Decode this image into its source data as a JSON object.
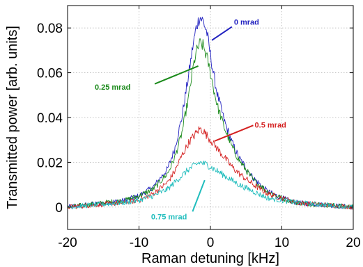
{
  "chart_data": {
    "type": "line",
    "xlabel": "Raman detuning [kHz]",
    "ylabel": "Transmitted power [arb. units]",
    "xlim": [
      -20,
      20
    ],
    "ylim": [
      -0.01,
      0.09
    ],
    "xticks": [
      -20,
      -10,
      0,
      10,
      20
    ],
    "xtick_labels": [
      "-20",
      "-10",
      "0",
      "10",
      "20"
    ],
    "yticks": [
      0,
      0.02,
      0.04,
      0.06,
      0.08
    ],
    "ytick_labels": [
      "0",
      "0.02",
      "0.04",
      "0.06",
      "0.08"
    ],
    "grid": true,
    "legend": "none",
    "series": [
      {
        "name": "0 mrad",
        "color": "#1f1fbf",
        "x": [
          -20,
          -16,
          -12,
          -10,
          -8,
          -6,
          -5,
          -4,
          -3,
          -2.5,
          -2,
          -1.5,
          -1,
          -0.5,
          0,
          0.5,
          1,
          2,
          3,
          4,
          6,
          8,
          10,
          12,
          16,
          20
        ],
        "y": [
          0.0,
          0.0015,
          0.003,
          0.005,
          0.009,
          0.017,
          0.026,
          0.04,
          0.06,
          0.071,
          0.08,
          0.085,
          0.083,
          0.078,
          0.068,
          0.058,
          0.05,
          0.038,
          0.029,
          0.022,
          0.013,
          0.007,
          0.004,
          0.002,
          0.001,
          0.0
        ]
      },
      {
        "name": "0.25 mrad",
        "color": "#1a8a1a",
        "x": [
          -20,
          -16,
          -12,
          -10,
          -8,
          -6,
          -5,
          -4,
          -3,
          -2.5,
          -2,
          -1.5,
          -1,
          -0.5,
          0,
          0.5,
          1,
          2,
          3,
          4,
          6,
          8,
          10,
          12,
          16,
          20
        ],
        "y": [
          0.0,
          0.0015,
          0.003,
          0.005,
          0.008,
          0.015,
          0.022,
          0.033,
          0.05,
          0.061,
          0.069,
          0.073,
          0.072,
          0.067,
          0.06,
          0.052,
          0.045,
          0.035,
          0.027,
          0.021,
          0.012,
          0.007,
          0.004,
          0.002,
          0.001,
          0.0
        ]
      },
      {
        "name": "0.5 mrad",
        "color": "#d42020",
        "x": [
          -20,
          -16,
          -12,
          -10,
          -8,
          -6,
          -5,
          -4,
          -3,
          -2,
          -1.5,
          -1,
          -0.5,
          0,
          0.5,
          1,
          2,
          3,
          4,
          6,
          8,
          10,
          12,
          16,
          20
        ],
        "y": [
          0.0,
          0.001,
          0.002,
          0.003,
          0.006,
          0.011,
          0.016,
          0.023,
          0.029,
          0.033,
          0.035,
          0.034,
          0.032,
          0.03,
          0.028,
          0.026,
          0.022,
          0.018,
          0.015,
          0.01,
          0.006,
          0.004,
          0.002,
          0.001,
          0.0
        ]
      },
      {
        "name": "0.75 mrad",
        "color": "#20bdbd",
        "x": [
          -20,
          -16,
          -12,
          -10,
          -8,
          -6,
          -5,
          -4,
          -3,
          -2,
          -1.5,
          -1,
          -0.5,
          0,
          0.5,
          1,
          2,
          3,
          4,
          6,
          8,
          10,
          12,
          16,
          20
        ],
        "y": [
          0.0,
          0.001,
          0.002,
          0.003,
          0.005,
          0.008,
          0.011,
          0.014,
          0.017,
          0.019,
          0.02,
          0.0195,
          0.019,
          0.018,
          0.017,
          0.016,
          0.014,
          0.012,
          0.01,
          0.007,
          0.004,
          0.003,
          0.002,
          0.001,
          0.0
        ]
      }
    ],
    "annotations": [
      {
        "text": "0 mrad",
        "color": "#1f1fbf",
        "label_x": 3.3,
        "label_y": 0.0815,
        "line": [
          [
            3.0,
            0.0805
          ],
          [
            0.2,
            0.0745
          ]
        ]
      },
      {
        "text": "0.25 mrad",
        "color": "#1a8a1a",
        "label_x": -16.2,
        "label_y": 0.0525,
        "line": [
          [
            -7.8,
            0.055
          ],
          [
            -1.7,
            0.063
          ]
        ]
      },
      {
        "text": "0.5 mrad",
        "color": "#d42020",
        "label_x": 6.2,
        "label_y": 0.0355,
        "line": [
          [
            6.0,
            0.0365
          ],
          [
            0.6,
            0.0295
          ]
        ]
      },
      {
        "text": "0.75 mrad",
        "color": "#20bdbd",
        "label_x": -8.3,
        "label_y": -0.0055,
        "line": [
          [
            -2.5,
            -0.002
          ],
          [
            -0.8,
            0.012
          ]
        ]
      }
    ]
  }
}
